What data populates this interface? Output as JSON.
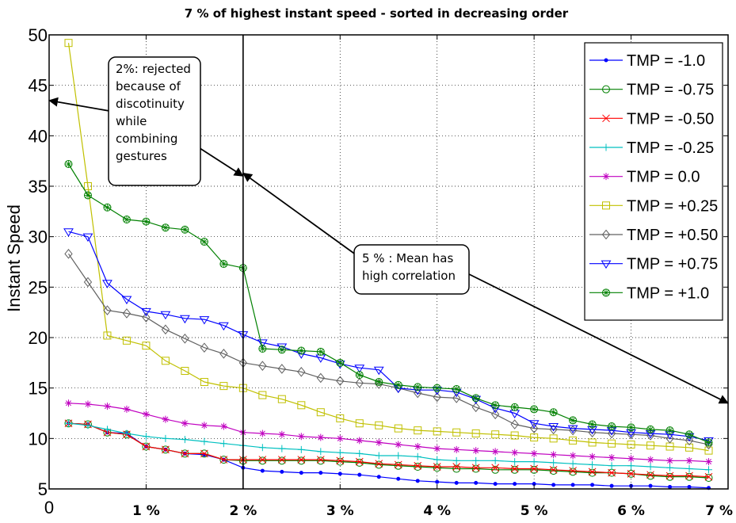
{
  "chart_data": {
    "type": "line",
    "title": "7 % of highest instant speed - sorted in decreasing order",
    "xlabel": "",
    "ylabel": "Instant Speed",
    "xlim": [
      0,
      7
    ],
    "ylim": [
      5,
      50
    ],
    "xticks": [
      {
        "v": 0,
        "label": "0"
      },
      {
        "v": 1,
        "label": "1 %"
      },
      {
        "v": 2,
        "label": "2 %"
      },
      {
        "v": 3,
        "label": "3 %"
      },
      {
        "v": 4,
        "label": "4 %"
      },
      {
        "v": 5,
        "label": "5 %"
      },
      {
        "v": 6,
        "label": "6 %"
      },
      {
        "v": 7,
        "label": "7 %"
      }
    ],
    "yticks": [
      {
        "v": 5,
        "label": "5"
      },
      {
        "v": 10,
        "label": "10"
      },
      {
        "v": 15,
        "label": "15"
      },
      {
        "v": 20,
        "label": "20"
      },
      {
        "v": 25,
        "label": "25"
      },
      {
        "v": 30,
        "label": "30"
      },
      {
        "v": 35,
        "label": "35"
      },
      {
        "v": 40,
        "label": "40"
      },
      {
        "v": 45,
        "label": "45"
      },
      {
        "v": 50,
        "label": "50"
      }
    ],
    "grid": true,
    "legend_position": "top-right",
    "x": [
      0.2,
      0.4,
      0.6,
      0.8,
      1.0,
      1.2,
      1.4,
      1.6,
      1.8,
      2.0,
      2.2,
      2.4,
      2.6,
      2.8,
      3.0,
      3.2,
      3.4,
      3.6,
      3.8,
      4.0,
      4.2,
      4.4,
      4.6,
      4.8,
      5.0,
      5.2,
      5.4,
      5.6,
      5.8,
      6.0,
      6.2,
      6.4,
      6.6,
      6.8
    ],
    "series": [
      {
        "name": "TMP = -1.0",
        "color": "#0000ff",
        "marker": "dot",
        "values": [
          11.5,
          11.4,
          10.6,
          10.5,
          9.2,
          8.9,
          8.5,
          8.4,
          7.9,
          7.1,
          6.8,
          6.7,
          6.6,
          6.6,
          6.5,
          6.4,
          6.2,
          6.0,
          5.8,
          5.7,
          5.6,
          5.6,
          5.5,
          5.5,
          5.5,
          5.4,
          5.4,
          5.4,
          5.3,
          5.3,
          5.3,
          5.2,
          5.2,
          5.1
        ]
      },
      {
        "name": "TMP = -0.75",
        "color": "#008000",
        "marker": "circle",
        "values": [
          11.5,
          11.4,
          10.6,
          10.4,
          9.2,
          8.9,
          8.5,
          8.5,
          7.9,
          7.8,
          7.8,
          7.8,
          7.8,
          7.8,
          7.7,
          7.6,
          7.4,
          7.3,
          7.2,
          7.1,
          7.0,
          7.0,
          6.9,
          6.9,
          6.9,
          6.8,
          6.7,
          6.6,
          6.6,
          6.5,
          6.3,
          6.2,
          6.2,
          6.1
        ]
      },
      {
        "name": "TMP = -0.50",
        "color": "#ff0000",
        "marker": "x",
        "values": [
          11.5,
          11.4,
          10.6,
          10.4,
          9.2,
          8.9,
          8.5,
          8.5,
          7.9,
          7.9,
          7.9,
          7.9,
          7.9,
          7.9,
          7.8,
          7.7,
          7.5,
          7.4,
          7.3,
          7.2,
          7.2,
          7.1,
          7.1,
          7.0,
          7.0,
          6.9,
          6.8,
          6.7,
          6.6,
          6.5,
          6.4,
          6.3,
          6.3,
          6.2
        ]
      },
      {
        "name": "TMP = -0.25",
        "color": "#00c0c0",
        "marker": "plus",
        "values": [
          11.5,
          11.3,
          10.9,
          10.5,
          10.2,
          10.0,
          9.9,
          9.7,
          9.5,
          9.3,
          9.1,
          9.0,
          8.9,
          8.7,
          8.6,
          8.5,
          8.3,
          8.3,
          8.2,
          7.9,
          7.8,
          7.8,
          7.8,
          7.7,
          7.7,
          7.6,
          7.5,
          7.4,
          7.3,
          7.3,
          7.2,
          7.1,
          7.0,
          6.9
        ]
      },
      {
        "name": "TMP = 0.0",
        "color": "#c000c0",
        "marker": "star",
        "values": [
          13.5,
          13.4,
          13.2,
          12.9,
          12.4,
          11.9,
          11.5,
          11.3,
          11.2,
          10.6,
          10.5,
          10.4,
          10.2,
          10.1,
          10.0,
          9.8,
          9.6,
          9.4,
          9.2,
          9.0,
          8.9,
          8.8,
          8.7,
          8.6,
          8.5,
          8.4,
          8.3,
          8.2,
          8.1,
          8.0,
          7.9,
          7.8,
          7.8,
          7.7
        ]
      },
      {
        "name": "TMP = +0.25",
        "color": "#c0c000",
        "marker": "square",
        "values": [
          49.2,
          35.0,
          20.2,
          19.7,
          19.2,
          17.7,
          16.7,
          15.6,
          15.2,
          15.0,
          14.3,
          13.9,
          13.3,
          12.6,
          12.0,
          11.5,
          11.3,
          11.0,
          10.8,
          10.7,
          10.6,
          10.5,
          10.4,
          10.3,
          10.1,
          10.0,
          9.8,
          9.6,
          9.5,
          9.4,
          9.3,
          9.2,
          9.1,
          8.8
        ]
      },
      {
        "name": "TMP = +0.50",
        "color": "#606060",
        "marker": "diamond",
        "values": [
          28.3,
          25.5,
          22.7,
          22.4,
          22.0,
          20.8,
          19.9,
          19.0,
          18.4,
          17.5,
          17.2,
          16.9,
          16.6,
          16.0,
          15.7,
          15.5,
          15.4,
          15.0,
          14.5,
          14.1,
          14.0,
          13.1,
          12.4,
          11.4,
          11.0,
          10.9,
          10.8,
          10.6,
          10.5,
          10.4,
          10.3,
          10.0,
          9.8,
          9.4
        ]
      },
      {
        "name": "TMP = +0.75",
        "color": "#0000ff",
        "marker": "triangle-down",
        "values": [
          30.5,
          30.0,
          25.4,
          23.8,
          22.6,
          22.3,
          21.9,
          21.8,
          21.2,
          20.3,
          19.5,
          19.1,
          18.4,
          18.0,
          17.4,
          17.0,
          16.8,
          15.0,
          14.8,
          14.8,
          14.6,
          13.9,
          13.0,
          12.5,
          11.5,
          11.2,
          11.0,
          10.9,
          10.8,
          10.6,
          10.5,
          10.4,
          10.2,
          9.8
        ]
      },
      {
        "name": "TMP = +1.0",
        "color": "#008000",
        "marker": "circle-star",
        "values": [
          37.2,
          34.1,
          32.9,
          31.7,
          31.5,
          30.9,
          30.7,
          29.5,
          27.3,
          26.9,
          18.9,
          18.8,
          18.7,
          18.6,
          17.5,
          16.3,
          15.6,
          15.3,
          15.1,
          15.0,
          14.9,
          14.0,
          13.3,
          13.1,
          12.9,
          12.6,
          11.8,
          11.4,
          11.2,
          11.1,
          10.9,
          10.8,
          10.4,
          9.6
        ]
      }
    ],
    "annotations": [
      {
        "lines": [
          "2%: rejected",
          "because of",
          "discotinuity",
          "while",
          "combining",
          "gestures"
        ],
        "arrows_to": [
          {
            "x": 0.0,
            "y": 43.5
          },
          {
            "x": 2.0,
            "y": 36.0
          }
        ]
      },
      {
        "lines": [
          "5 % : Mean has",
          "high correlation"
        ],
        "arrows_to": [
          {
            "x": 2.0,
            "y": 36.3
          },
          {
            "x": 7.0,
            "y": 13.5
          }
        ]
      }
    ],
    "reference_line_x": 2.0
  }
}
